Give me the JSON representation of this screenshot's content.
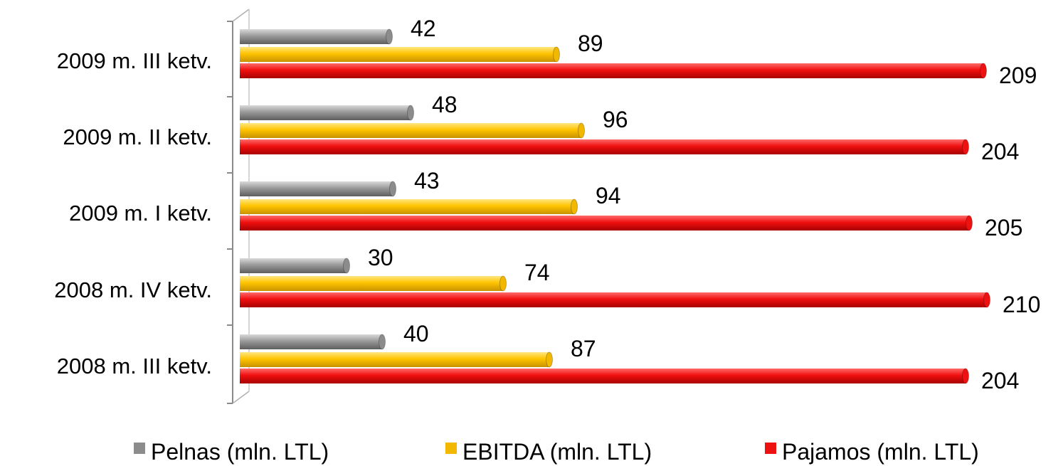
{
  "chart_data": {
    "type": "bar",
    "orientation": "horizontal",
    "title": "",
    "xlabel": "",
    "ylabel": "",
    "categories": [
      "2009 m. III ketv.",
      "2009 m. II ketv.",
      "2009 m. I ketv.",
      "2008 m.  IV ketv.",
      "2008 m. III ketv."
    ],
    "series": [
      {
        "name": "Pelnas (mln. LTL)",
        "color": "#8c8c8c",
        "values": [
          42,
          48,
          43,
          30,
          40
        ]
      },
      {
        "name": "EBITDA (mln. LTL)",
        "color": "#f2b800",
        "values": [
          89,
          96,
          94,
          74,
          87
        ]
      },
      {
        "name": "Pajamos (mln. LTL)",
        "color": "#ee1111",
        "values": [
          209,
          204,
          205,
          210,
          204
        ]
      }
    ],
    "xlim": [
      0,
      210
    ],
    "grid": false,
    "legend_position": "bottom",
    "data_labels": true
  }
}
